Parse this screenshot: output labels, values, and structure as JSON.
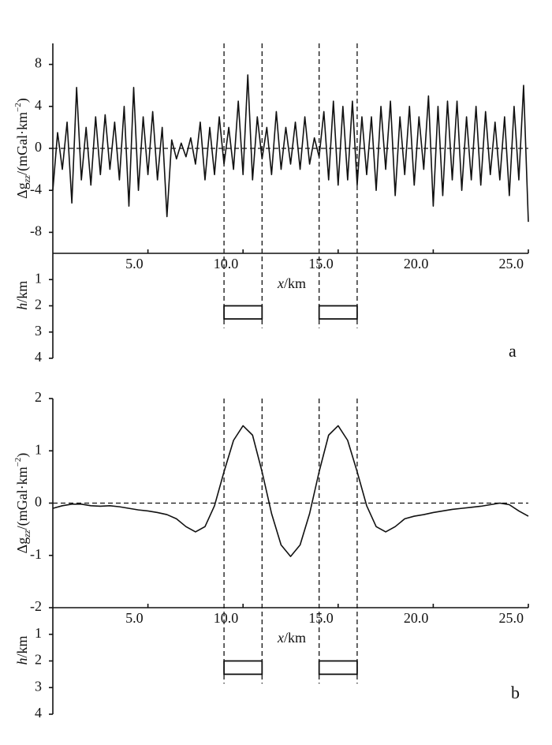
{
  "chart_data": [
    {
      "type": "line",
      "panel_label": "a",
      "ylabel": {
        "prefix": "Δg",
        "sub": "zz",
        "mid": "/(mGal·km",
        "sup": "−2",
        "suffix": ")"
      },
      "xlabel": {
        "var": "x",
        "unit": "/km"
      },
      "hlabel": {
        "var": "h",
        "unit": "/km"
      },
      "xlim": [
        0,
        25
      ],
      "xticks": [
        {
          "value": 5,
          "label": "5.0"
        },
        {
          "value": 10,
          "label": "10.0"
        },
        {
          "value": 15,
          "label": "15.0"
        },
        {
          "value": 20,
          "label": "20.0"
        },
        {
          "value": 25,
          "label": "25.0"
        }
      ],
      "ylim": [
        -10,
        10
      ],
      "yticks": [
        -8,
        -4,
        0,
        4,
        8
      ],
      "reference_line": 0,
      "hlim": [
        0,
        4
      ],
      "hticks": [
        1,
        2,
        3,
        4
      ],
      "color": "#111111",
      "bodies": [
        {
          "x": [
            9,
            11
          ],
          "depth": [
            2,
            2.5
          ]
        },
        {
          "x": [
            14,
            16
          ],
          "depth": [
            2,
            2.5
          ]
        }
      ],
      "x": [
        0,
        0.25,
        0.5,
        0.75,
        1,
        1.25,
        1.5,
        1.75,
        2,
        2.25,
        2.5,
        2.75,
        3,
        3.25,
        3.5,
        3.75,
        4,
        4.25,
        4.5,
        4.75,
        5,
        5.25,
        5.5,
        5.75,
        6,
        6.25,
        6.5,
        6.75,
        7,
        7.25,
        7.5,
        7.75,
        8,
        8.25,
        8.5,
        8.75,
        9,
        9.25,
        9.5,
        9.75,
        10,
        10.25,
        10.5,
        10.75,
        11,
        11.25,
        11.5,
        11.75,
        12,
        12.25,
        12.5,
        12.75,
        13,
        13.25,
        13.5,
        13.75,
        14,
        14.25,
        14.5,
        14.75,
        15,
        15.25,
        15.5,
        15.75,
        16,
        16.25,
        16.5,
        16.75,
        17,
        17.25,
        17.5,
        17.75,
        18,
        18.25,
        18.5,
        18.75,
        19,
        19.25,
        19.5,
        19.75,
        20,
        20.25,
        20.5,
        20.75,
        21,
        21.25,
        21.5,
        21.75,
        22,
        22.25,
        22.5,
        22.75,
        23,
        23.25,
        23.5,
        23.75,
        24,
        24.25,
        24.5,
        24.75,
        25
      ],
      "values": [
        -4,
        1.5,
        -2,
        2.5,
        -5.2,
        5.8,
        -3,
        2,
        -3.5,
        3,
        -2.5,
        3.2,
        -2,
        2.5,
        -3,
        4,
        -5.5,
        5.8,
        -4,
        3,
        -2.5,
        3.5,
        -3,
        2,
        -6.5,
        0.8,
        -1,
        0.5,
        -0.8,
        1,
        -1.5,
        2.5,
        -3,
        2,
        -2.5,
        3,
        -1.5,
        2,
        -2,
        4.5,
        -2.5,
        7,
        -3,
        3,
        -1,
        2,
        -2.5,
        3.5,
        -2,
        2,
        -1.5,
        2.5,
        -2,
        3,
        -1.5,
        1,
        -0.8,
        3.5,
        -3,
        4.5,
        -3.5,
        4,
        -3,
        4.5,
        -3.5,
        3,
        -2.5,
        3,
        -4,
        4,
        -2,
        4.5,
        -4.5,
        3,
        -2.5,
        4,
        -3.5,
        3,
        -2,
        5,
        -5.5,
        4,
        -4.5,
        4.5,
        -3,
        4.5,
        -4,
        3,
        -3,
        4,
        -3.5,
        3.5,
        -2.5,
        2.5,
        -3,
        3,
        -4.5,
        4,
        -3,
        6,
        -7
      ]
    },
    {
      "type": "line",
      "panel_label": "b",
      "ylabel": {
        "prefix": "Δg",
        "sub": "zz",
        "mid": "/(mGal·km",
        "sup": "−2",
        "suffix": ")"
      },
      "xlabel": {
        "var": "x",
        "unit": "/km"
      },
      "hlabel": {
        "var": "h",
        "unit": "/km"
      },
      "xlim": [
        0,
        25
      ],
      "xticks": [
        {
          "value": 5,
          "label": "5.0"
        },
        {
          "value": 10,
          "label": "10.0"
        },
        {
          "value": 15,
          "label": "15.0"
        },
        {
          "value": 20,
          "label": "20.0"
        },
        {
          "value": 25,
          "label": "25.0"
        }
      ],
      "ylim": [
        -2,
        2
      ],
      "yticks": [
        -2,
        -1,
        0,
        1,
        2
      ],
      "reference_line": 0,
      "hlim": [
        0,
        4
      ],
      "hticks": [
        1,
        2,
        3,
        4
      ],
      "color": "#111111",
      "bodies": [
        {
          "x": [
            9,
            11
          ],
          "depth": [
            2,
            2.5
          ]
        },
        {
          "x": [
            14,
            16
          ],
          "depth": [
            2,
            2.5
          ]
        }
      ],
      "x": [
        0,
        0.5,
        1,
        1.5,
        2,
        2.5,
        3,
        3.5,
        4,
        4.5,
        5,
        5.5,
        6,
        6.5,
        7,
        7.5,
        8,
        8.5,
        9,
        9.5,
        10,
        10.5,
        11,
        11.5,
        12,
        12.5,
        13,
        13.5,
        14,
        14.5,
        15,
        15.5,
        16,
        16.5,
        17,
        17.5,
        18,
        18.5,
        19,
        19.5,
        20,
        20.5,
        21,
        21.5,
        22,
        22.5,
        23,
        23.5,
        24,
        24.5,
        25
      ],
      "values": [
        -0.1,
        -0.05,
        -0.02,
        -0.02,
        -0.05,
        -0.06,
        -0.05,
        -0.07,
        -0.1,
        -0.13,
        -0.15,
        -0.18,
        -0.22,
        -0.3,
        -0.45,
        -0.55,
        -0.45,
        -0.05,
        0.6,
        1.2,
        1.48,
        1.3,
        0.6,
        -0.2,
        -0.8,
        -1.02,
        -0.8,
        -0.2,
        0.6,
        1.3,
        1.48,
        1.2,
        0.6,
        -0.05,
        -0.45,
        -0.55,
        -0.45,
        -0.3,
        -0.25,
        -0.22,
        -0.18,
        -0.15,
        -0.12,
        -0.1,
        -0.08,
        -0.06,
        -0.03,
        0,
        -0.03,
        -0.15,
        -0.25
      ]
    }
  ]
}
